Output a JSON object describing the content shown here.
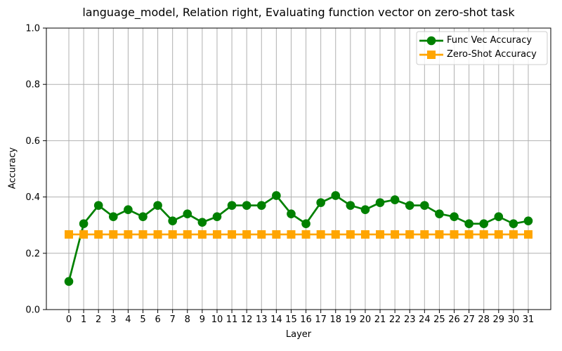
{
  "chart_data": {
    "type": "line",
    "title": "language_model, Relation right, Evaluating function vector on zero-shot task",
    "xlabel": "Layer",
    "ylabel": "Accuracy",
    "x": [
      0,
      1,
      2,
      3,
      4,
      5,
      6,
      7,
      8,
      9,
      10,
      11,
      12,
      13,
      14,
      15,
      16,
      17,
      18,
      19,
      20,
      21,
      22,
      23,
      24,
      25,
      26,
      27,
      28,
      29,
      30,
      31
    ],
    "ylim": [
      0.0,
      1.0
    ],
    "yticks": [
      0.0,
      0.2,
      0.4,
      0.6,
      0.8,
      1.0
    ],
    "grid": true,
    "legend_position": "upper right",
    "series": [
      {
        "name": "Func Vec Accuracy",
        "color": "#008000",
        "marker": "circle",
        "values": [
          0.1,
          0.305,
          0.37,
          0.33,
          0.355,
          0.33,
          0.37,
          0.315,
          0.34,
          0.31,
          0.33,
          0.37,
          0.37,
          0.37,
          0.405,
          0.34,
          0.305,
          0.38,
          0.405,
          0.37,
          0.355,
          0.38,
          0.39,
          0.37,
          0.37,
          0.34,
          0.33,
          0.305,
          0.305,
          0.33,
          0.305,
          0.315
        ]
      },
      {
        "name": "Zero-Shot Accuracy",
        "color": "#ffa500",
        "marker": "square",
        "values": [
          0.267,
          0.267,
          0.267,
          0.267,
          0.267,
          0.267,
          0.267,
          0.267,
          0.267,
          0.267,
          0.267,
          0.267,
          0.267,
          0.267,
          0.267,
          0.267,
          0.267,
          0.267,
          0.267,
          0.267,
          0.267,
          0.267,
          0.267,
          0.267,
          0.267,
          0.267,
          0.267,
          0.267,
          0.267,
          0.267,
          0.267,
          0.267
        ]
      }
    ]
  }
}
